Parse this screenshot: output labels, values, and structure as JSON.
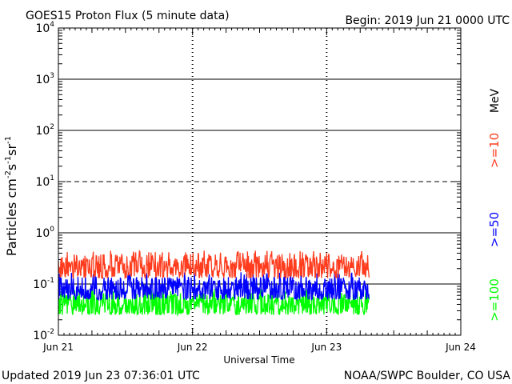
{
  "title": "GOES15 Proton Flux (5 minute data)",
  "begin": "Begin: 2019 Jun 21 0000 UTC",
  "updated": "Updated 2019 Jun 23 07:36:01 UTC",
  "credit": "NOAA/SWPC Boulder, CO USA",
  "ylabel": {
    "base": "Particles cm",
    "e1": "-2",
    "mid1": "s",
    "e2": "-1",
    "mid2": "sr",
    "e3": "-1"
  },
  "xlabel": "Universal Time",
  "units_label": "MeV",
  "colors": {
    "p10": "#ff3c1e",
    "p50": "#0000ff",
    "p100": "#00ff00",
    "axis": "#000000"
  },
  "chart_data": {
    "type": "line",
    "title": "GOES15 Proton Flux (5 minute data)",
    "xlabel": "Universal Time",
    "ylabel": "Particles cm-2 s-1 sr-1",
    "y_scale": "log",
    "ylim": [
      0.01,
      10000
    ],
    "y_ticks": [
      {
        "base": "10",
        "exp": "-2"
      },
      {
        "base": "10",
        "exp": "-1"
      },
      {
        "base": "10",
        "exp": "0"
      },
      {
        "base": "10",
        "exp": "1"
      },
      {
        "base": "10",
        "exp": "2"
      },
      {
        "base": "10",
        "exp": "3"
      },
      {
        "base": "10",
        "exp": "4"
      }
    ],
    "x_ticks": [
      "Jun 21",
      "Jun 22",
      "Jun 23",
      "Jun 24"
    ],
    "xlim": [
      "2019-06-21 00:00",
      "2019-06-24 00:00"
    ],
    "threshold_line": 10,
    "data_end": "2019-06-23 07:35",
    "series": [
      {
        "name": ">=10",
        "color": "#ff3c1e",
        "typical": 0.22,
        "min": 0.13,
        "max": 0.45
      },
      {
        "name": ">=50",
        "color": "#0000ff",
        "typical": 0.08,
        "min": 0.05,
        "max": 0.17
      },
      {
        "name": ">=100",
        "color": "#00ff00",
        "typical": 0.04,
        "min": 0.025,
        "max": 0.08
      }
    ]
  }
}
